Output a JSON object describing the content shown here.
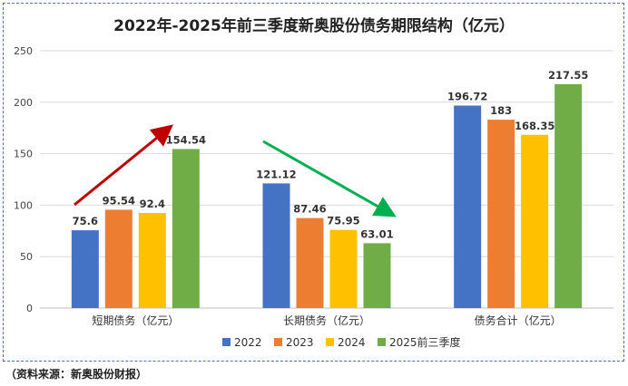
{
  "chart_data": {
    "type": "bar",
    "title": "2022年-2025年前三季度新奥股份债务期限结构（亿元）",
    "categories": [
      "短期债务（亿元）",
      "长期债务（亿元）",
      "债务合计（亿元）"
    ],
    "series": [
      {
        "name": "2022",
        "color": "#4472C4",
        "values": [
          75.6,
          121.12,
          196.72
        ],
        "labels": [
          "75.6",
          "121.12",
          "196.72"
        ]
      },
      {
        "name": "2023",
        "color": "#ED7D31",
        "values": [
          95.54,
          87.46,
          183
        ],
        "labels": [
          "95.54",
          "87.46",
          "183"
        ]
      },
      {
        "name": "2024",
        "color": "#FFC000",
        "values": [
          92.4,
          75.95,
          168.35
        ],
        "labels": [
          "92.4",
          "75.95",
          "168.35"
        ]
      },
      {
        "name": "2025前三季度",
        "color": "#70AD47",
        "values": [
          154.54,
          63.01,
          217.55
        ],
        "labels": [
          "154.54",
          "63.01",
          "217.55"
        ]
      }
    ],
    "ylim": [
      0,
      250
    ],
    "yticks": [
      0,
      50,
      100,
      150,
      200,
      250
    ],
    "grid": true,
    "legend": "bottom",
    "annotations": [
      {
        "type": "arrow",
        "direction": "up",
        "color": "#C00000"
      },
      {
        "type": "arrow",
        "direction": "down",
        "color": "#00B050"
      }
    ]
  },
  "source_note": "（资料来源：新奥股份财报）"
}
